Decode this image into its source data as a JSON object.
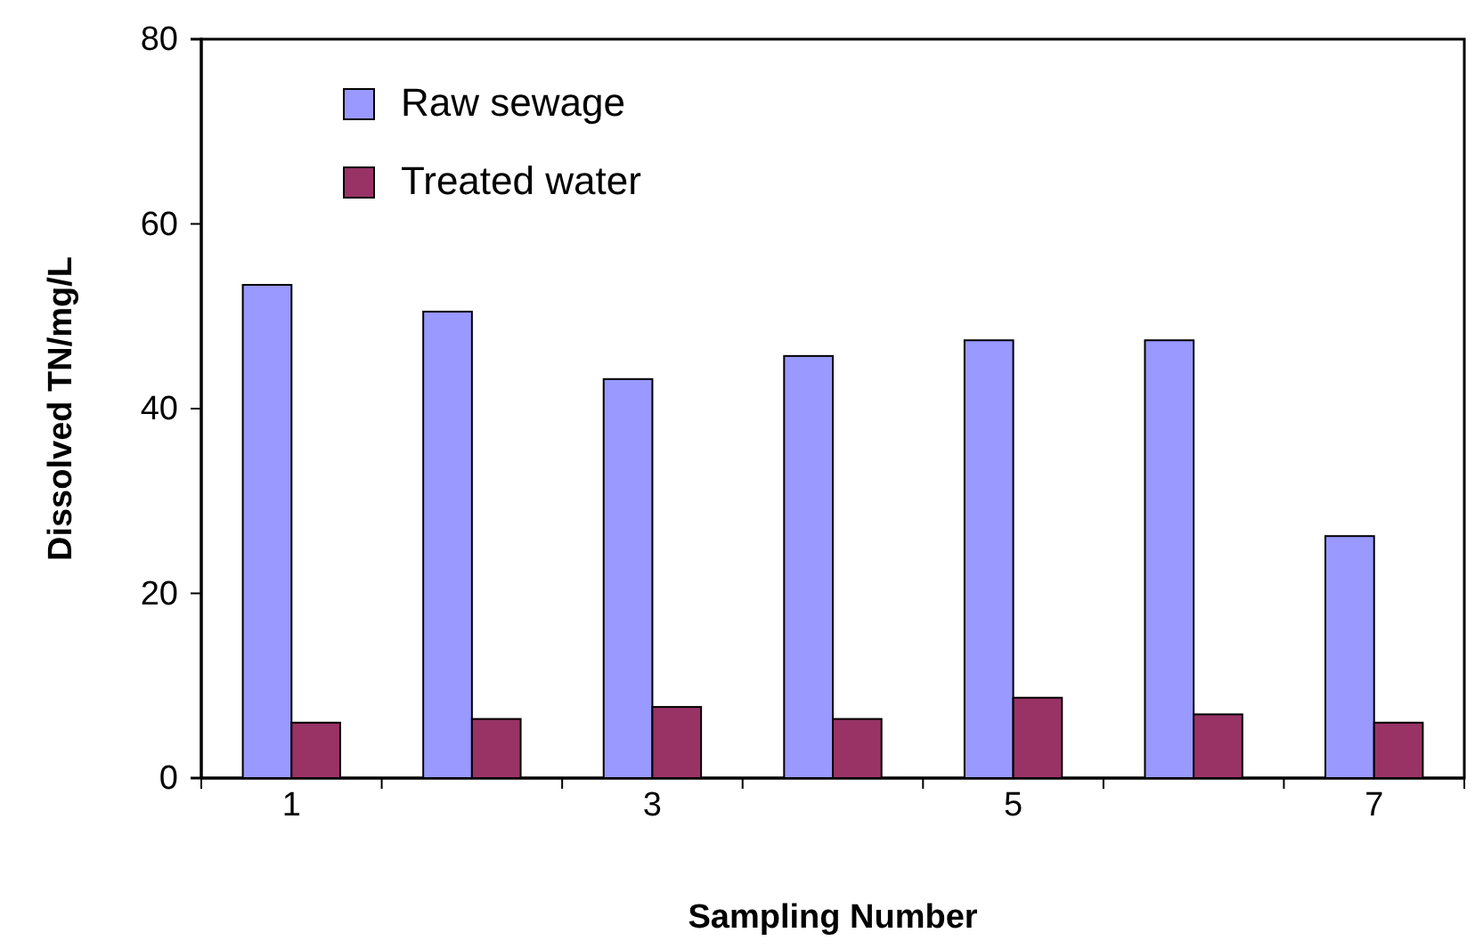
{
  "chart_data": {
    "type": "bar",
    "xlabel": "Sampling Number",
    "ylabel": "Dissolved TN/mg/L",
    "categories": [
      "1",
      null,
      "3",
      null,
      "5",
      null,
      "7"
    ],
    "series": [
      {
        "name": "Raw sewage",
        "color": "#9999ff",
        "values": [
          53.4,
          50.5,
          43.2,
          45.7,
          47.4,
          47.4,
          26.2
        ]
      },
      {
        "name": "Treated water",
        "color": "#993366",
        "values": [
          6.0,
          6.4,
          7.7,
          6.4,
          8.7,
          6.9,
          6.0
        ]
      }
    ],
    "ylim": [
      0,
      80
    ],
    "yticks": [
      0,
      20,
      40,
      60,
      80
    ],
    "grid": false,
    "legend": "top left"
  }
}
